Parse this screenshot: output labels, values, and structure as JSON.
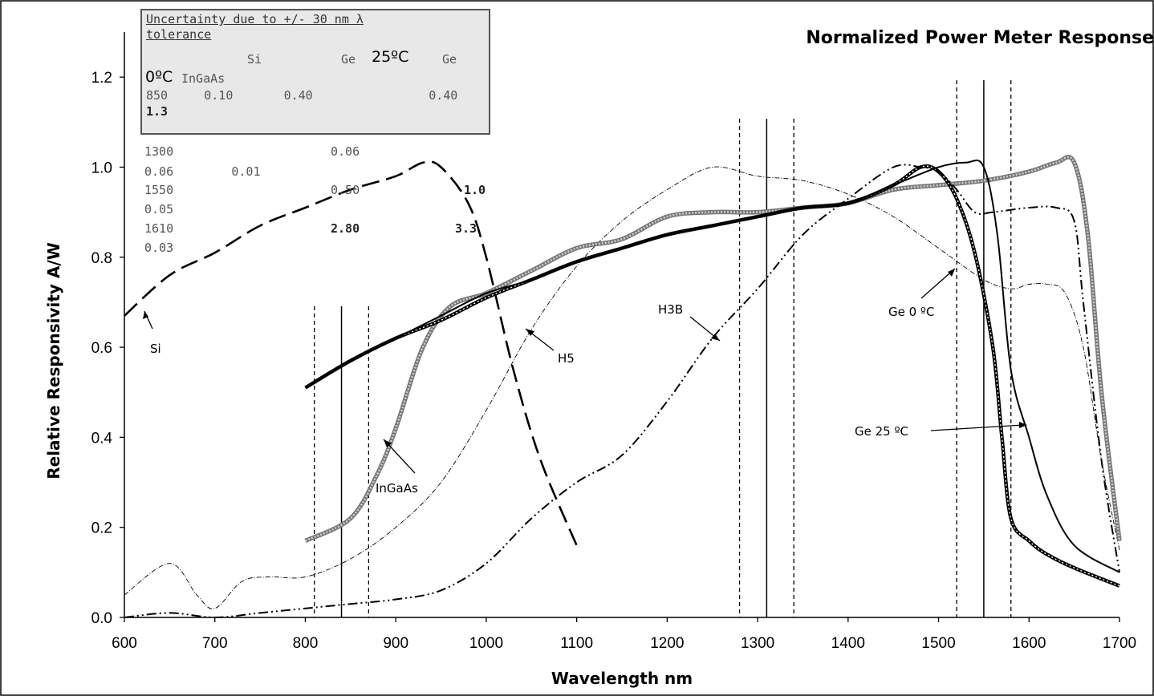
{
  "chart_data": {
    "type": "line",
    "title": "Normalized Power Meter Response",
    "xlabel": "Wavelength nm",
    "ylabel": "Relative Responsivity A/W",
    "xlim": [
      600,
      1700
    ],
    "ylim": [
      0,
      1.3
    ],
    "xticks": [
      "600",
      "700",
      "800",
      "900",
      "1000",
      "1100",
      "1200",
      "1300",
      "1400",
      "1500",
      "1600",
      "1700"
    ],
    "yticks": [
      "0.0",
      "0.2",
      "0.4",
      "0.6",
      "0.8",
      "1.0",
      "1.2"
    ],
    "grid": false,
    "series": [
      {
        "name": "Si",
        "style": "long-dash",
        "x": [
          600,
          650,
          700,
          750,
          800,
          850,
          900,
          930,
          950,
          980,
          1000,
          1030,
          1060,
          1100
        ],
        "y": [
          0.67,
          0.76,
          0.81,
          0.87,
          0.91,
          0.95,
          0.98,
          1.01,
          1.0,
          0.92,
          0.8,
          0.55,
          0.35,
          0.16
        ]
      },
      {
        "name": "H5",
        "style": "thin-dash-dot",
        "x": [
          600,
          650,
          680,
          700,
          730,
          760,
          800,
          850,
          900,
          950,
          1000,
          1050,
          1100,
          1150,
          1200,
          1250,
          1300,
          1350,
          1400,
          1450,
          1500,
          1550,
          1580,
          1600,
          1620,
          1640,
          1660,
          1680,
          1700
        ],
        "y": [
          0.05,
          0.12,
          0.05,
          0.02,
          0.08,
          0.09,
          0.09,
          0.13,
          0.2,
          0.3,
          0.46,
          0.64,
          0.78,
          0.88,
          0.95,
          1.0,
          0.98,
          0.97,
          0.94,
          0.89,
          0.82,
          0.75,
          0.73,
          0.74,
          0.74,
          0.72,
          0.6,
          0.35,
          0.15
        ]
      },
      {
        "name": "InGaAs",
        "style": "gray-thick",
        "x": [
          800,
          850,
          880,
          900,
          930,
          960,
          1000,
          1050,
          1100,
          1150,
          1200,
          1250,
          1300,
          1350,
          1400,
          1450,
          1500,
          1550,
          1600,
          1630,
          1650,
          1665,
          1680,
          1700
        ],
        "y": [
          0.17,
          0.22,
          0.32,
          0.42,
          0.6,
          0.69,
          0.72,
          0.77,
          0.82,
          0.84,
          0.89,
          0.9,
          0.9,
          0.91,
          0.92,
          0.95,
          0.96,
          0.97,
          0.99,
          1.01,
          1.01,
          0.85,
          0.5,
          0.17
        ]
      },
      {
        "name": "Ge 25 ºC",
        "style": "dotted-thick",
        "x": [
          800,
          850,
          900,
          950,
          1000,
          1050,
          1100,
          1150,
          1200,
          1250,
          1300,
          1350,
          1400,
          1450,
          1480,
          1500,
          1520,
          1540,
          1560,
          1570,
          1580,
          1600,
          1620,
          1650,
          1700
        ],
        "y": [
          0.51,
          0.57,
          0.62,
          0.66,
          0.71,
          0.75,
          0.79,
          0.82,
          0.85,
          0.87,
          0.89,
          0.91,
          0.92,
          0.96,
          1.0,
          0.99,
          0.93,
          0.81,
          0.6,
          0.4,
          0.22,
          0.17,
          0.14,
          0.11,
          0.07
        ]
      },
      {
        "name": "Ge 0 ºC",
        "style": "solid",
        "x": [
          800,
          850,
          900,
          950,
          1000,
          1050,
          1100,
          1150,
          1200,
          1250,
          1300,
          1350,
          1400,
          1450,
          1500,
          1530,
          1550,
          1565,
          1580,
          1600,
          1620,
          1650,
          1700
        ],
        "y": [
          0.51,
          0.57,
          0.62,
          0.67,
          0.72,
          0.75,
          0.79,
          0.82,
          0.85,
          0.87,
          0.89,
          0.91,
          0.92,
          0.96,
          1.0,
          1.01,
          1.0,
          0.85,
          0.55,
          0.4,
          0.27,
          0.16,
          0.1
        ]
      },
      {
        "name": "H3B",
        "style": "dash-dot-dot",
        "x": [
          600,
          650,
          700,
          750,
          800,
          850,
          900,
          950,
          1000,
          1050,
          1100,
          1150,
          1200,
          1250,
          1300,
          1350,
          1400,
          1450,
          1480,
          1500,
          1520,
          1540,
          1560,
          1600,
          1630,
          1650,
          1660,
          1680,
          1700
        ],
        "y": [
          0.0,
          0.01,
          0.0,
          0.01,
          0.02,
          0.03,
          0.04,
          0.06,
          0.12,
          0.22,
          0.3,
          0.36,
          0.48,
          0.62,
          0.73,
          0.85,
          0.93,
          1.0,
          1.0,
          0.99,
          0.95,
          0.9,
          0.9,
          0.91,
          0.91,
          0.88,
          0.7,
          0.35,
          0.1
        ]
      }
    ],
    "reference_lines": [
      {
        "x": 840,
        "style": "solid"
      },
      {
        "x": 810,
        "style": "dashed"
      },
      {
        "x": 870,
        "style": "dashed"
      },
      {
        "x": 1310,
        "style": "solid"
      },
      {
        "x": 1280,
        "style": "dashed"
      },
      {
        "x": 1340,
        "style": "dashed"
      },
      {
        "x": 1550,
        "style": "solid"
      },
      {
        "x": 1520,
        "style": "dashed"
      },
      {
        "x": 1580,
        "style": "dashed"
      }
    ],
    "annotations": [
      "Si",
      "H5",
      "H3B",
      "InGaAs",
      "Ge 0 ºC",
      "Ge 25 ºC"
    ]
  },
  "uncertainty_table": {
    "title_line1": "Uncertainty due to +/- 30 nm λ",
    "title_line2": "tolerance",
    "header_si": "Si",
    "header_ge1": "Ge",
    "header_25c": "25ºC",
    "header_ge2": "Ge",
    "header_0c": "0ºC",
    "header_ingaas": "InGaAs",
    "row1": "850     0.10       0.40                0.40",
    "row1_bold": "1.3",
    "row2a": "1300",
    "row2b": "0.06",
    "row2c": "0.06        0.01",
    "row3a": "1550",
    "row3b": "0.50",
    "row3c": "1.0",
    "row3d": "0.05",
    "row4a": "1610",
    "row4b": "2.80",
    "row4c": "3.3",
    "row4d": "0.03"
  }
}
